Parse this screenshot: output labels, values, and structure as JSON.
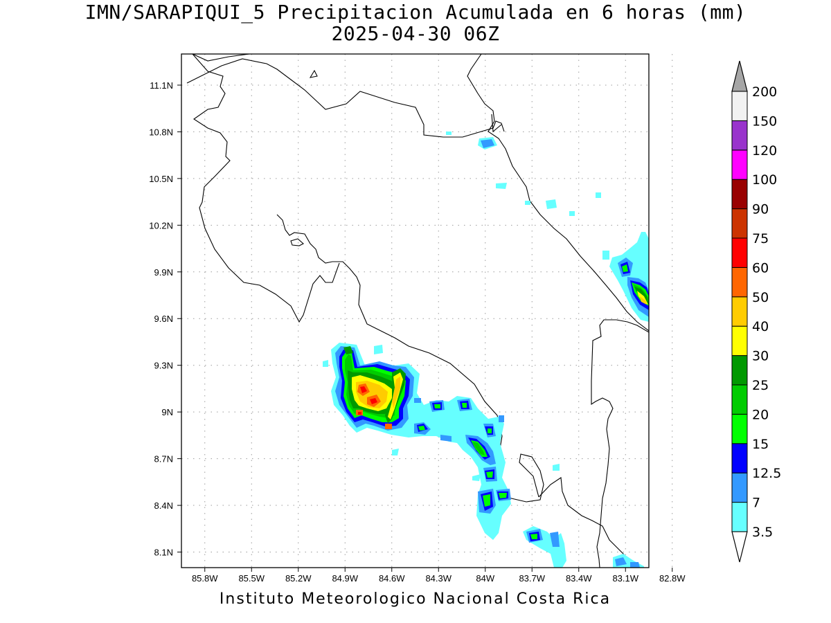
{
  "title": {
    "line1": "IMN/SARAPIQUI_5 Precipitacion Acumulada en 6 horas (mm)",
    "line2": "2025-04-30 06Z"
  },
  "footer": "Instituto Meteorologico Nacional Costa Rica",
  "map": {
    "projection": "lat-lon",
    "lon_range": [
      -85.95,
      -82.95
    ],
    "lat_range": [
      8.0,
      11.3
    ],
    "lon_ticks": [
      "85.8W",
      "85.5W",
      "85.2W",
      "84.9W",
      "84.6W",
      "84.3W",
      "84W",
      "83.7W",
      "83.4W",
      "83.1W",
      "82.8W"
    ],
    "lat_ticks": [
      "8.1N",
      "8.4N",
      "8.7N",
      "9N",
      "9.3N",
      "9.6N",
      "9.9N",
      "10.2N",
      "10.5N",
      "10.8N",
      "11.1N"
    ],
    "grid": "dotted"
  },
  "colorbar": {
    "levels": [
      "3.5",
      "7",
      "12.5",
      "15",
      "20",
      "25",
      "30",
      "40",
      "50",
      "60",
      "75",
      "90",
      "100",
      "120",
      "150",
      "200"
    ],
    "colors": [
      "#66ffff",
      "#3399ff",
      "#0000ff",
      "#00ff00",
      "#00cc00",
      "#009900",
      "#ffff00",
      "#ffcc00",
      "#ff6600",
      "#ff0000",
      "#cc3300",
      "#990000",
      "#ff00ff",
      "#9933cc",
      "#f2f2f2"
    ],
    "over_color": "#a6a6a6",
    "under_color": "#ffffff"
  }
}
